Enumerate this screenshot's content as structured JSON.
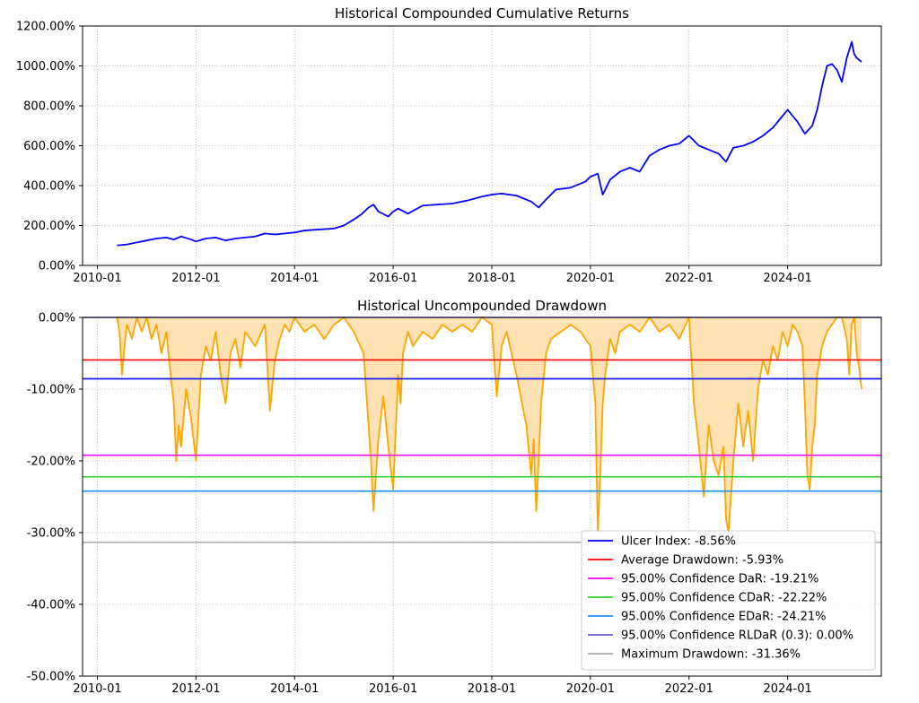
{
  "chart_data": [
    {
      "type": "line",
      "title": "Historical Compounded Cumulative Returns",
      "xlabel": "",
      "ylabel": "",
      "color": "#0000ff",
      "ylim": [
        0,
        1200
      ],
      "y_ticks": [
        0,
        200,
        400,
        600,
        800,
        1000,
        1200
      ],
      "y_tick_labels": [
        "0.00%",
        "200.00%",
        "400.00%",
        "600.00%",
        "800.00%",
        "1000.00%",
        "1200.00%"
      ],
      "x_ticks": [
        2010,
        2012,
        2014,
        2016,
        2018,
        2020,
        2022,
        2024
      ],
      "x_tick_labels": [
        "2010-01",
        "2012-01",
        "2014-01",
        "2016-01",
        "2018-01",
        "2020-01",
        "2022-01",
        "2024-01"
      ],
      "x_range": [
        2009.7,
        2025.9
      ],
      "grid": true,
      "series": [
        {
          "name": "Compounded Cumulative Returns",
          "x": [
            2010.4,
            2010.6,
            2010.8,
            2011.0,
            2011.2,
            2011.4,
            2011.55,
            2011.7,
            2011.9,
            2012.0,
            2012.2,
            2012.4,
            2012.6,
            2012.8,
            2013.0,
            2013.2,
            2013.4,
            2013.6,
            2013.8,
            2014.0,
            2014.2,
            2014.5,
            2014.8,
            2015.0,
            2015.2,
            2015.35,
            2015.5,
            2015.6,
            2015.7,
            2015.9,
            2016.0,
            2016.1,
            2016.3,
            2016.6,
            2016.9,
            2017.2,
            2017.5,
            2017.8,
            2018.0,
            2018.2,
            2018.5,
            2018.8,
            2018.95,
            2019.1,
            2019.3,
            2019.6,
            2019.9,
            2020.0,
            2020.15,
            2020.25,
            2020.4,
            2020.6,
            2020.8,
            2021.0,
            2021.2,
            2021.4,
            2021.6,
            2021.8,
            2022.0,
            2022.2,
            2022.4,
            2022.6,
            2022.75,
            2022.9,
            2023.1,
            2023.3,
            2023.5,
            2023.7,
            2023.9,
            2024.0,
            2024.2,
            2024.35,
            2024.5,
            2024.6,
            2024.7,
            2024.8,
            2024.9,
            2025.0,
            2025.1,
            2025.2,
            2025.3,
            2025.35,
            2025.4,
            2025.5
          ],
          "y": [
            100,
            105,
            115,
            125,
            135,
            140,
            130,
            145,
            130,
            120,
            135,
            140,
            125,
            135,
            140,
            145,
            160,
            155,
            160,
            165,
            175,
            180,
            185,
            200,
            230,
            255,
            290,
            305,
            270,
            245,
            270,
            285,
            260,
            300,
            305,
            310,
            325,
            345,
            355,
            360,
            350,
            320,
            290,
            330,
            380,
            390,
            420,
            445,
            460,
            355,
            430,
            470,
            490,
            470,
            550,
            580,
            600,
            610,
            650,
            600,
            580,
            560,
            520,
            590,
            600,
            620,
            650,
            690,
            750,
            780,
            720,
            660,
            700,
            780,
            900,
            1000,
            1010,
            980,
            920,
            1040,
            1120,
            1060,
            1040,
            1020
          ]
        }
      ]
    },
    {
      "type": "area",
      "title": "Historical Uncompounded Drawdown",
      "xlabel": "",
      "ylabel": "",
      "line_color": "#ffa500",
      "fill_color": "#ffe2b4",
      "ylim": [
        -50,
        0
      ],
      "y_ticks": [
        0,
        -10,
        -20,
        -30,
        -40,
        -50
      ],
      "y_tick_labels": [
        "0.00%",
        "-10.00%",
        "-20.00%",
        "-30.00%",
        "-40.00%",
        "-50.00%"
      ],
      "x_ticks": [
        2010,
        2012,
        2014,
        2016,
        2018,
        2020,
        2022,
        2024
      ],
      "x_tick_labels": [
        "2010-01",
        "2012-01",
        "2014-01",
        "2016-01",
        "2018-01",
        "2020-01",
        "2022-01",
        "2024-01"
      ],
      "x_range": [
        2009.7,
        2025.9
      ],
      "grid": true,
      "series": [
        {
          "name": "Drawdown",
          "x": [
            2010.4,
            2010.45,
            2010.5,
            2010.55,
            2010.6,
            2010.7,
            2010.8,
            2010.9,
            2011.0,
            2011.1,
            2011.2,
            2011.3,
            2011.4,
            2011.5,
            2011.55,
            2011.6,
            2011.65,
            2011.7,
            2011.8,
            2011.9,
            2012.0,
            2012.1,
            2012.2,
            2012.3,
            2012.4,
            2012.5,
            2012.6,
            2012.7,
            2012.8,
            2012.9,
            2013.0,
            2013.2,
            2013.4,
            2013.5,
            2013.6,
            2013.7,
            2013.8,
            2013.9,
            2014.0,
            2014.2,
            2014.4,
            2014.6,
            2014.8,
            2015.0,
            2015.2,
            2015.4,
            2015.55,
            2015.6,
            2015.65,
            2015.7,
            2015.8,
            2015.9,
            2016.0,
            2016.1,
            2016.15,
            2016.2,
            2016.3,
            2016.4,
            2016.6,
            2016.8,
            2017.0,
            2017.2,
            2017.4,
            2017.6,
            2017.8,
            2018.0,
            2018.1,
            2018.2,
            2018.3,
            2018.5,
            2018.7,
            2018.8,
            2018.85,
            2018.9,
            2018.95,
            2019.0,
            2019.1,
            2019.2,
            2019.4,
            2019.6,
            2019.8,
            2020.0,
            2020.1,
            2020.15,
            2020.2,
            2020.25,
            2020.3,
            2020.4,
            2020.5,
            2020.6,
            2020.8,
            2021.0,
            2021.2,
            2021.4,
            2021.6,
            2021.8,
            2022.0,
            2022.1,
            2022.2,
            2022.3,
            2022.4,
            2022.5,
            2022.6,
            2022.7,
            2022.75,
            2022.8,
            2022.9,
            2023.0,
            2023.1,
            2023.2,
            2023.3,
            2023.4,
            2023.5,
            2023.6,
            2023.7,
            2023.8,
            2023.9,
            2024.0,
            2024.1,
            2024.2,
            2024.3,
            2024.35,
            2024.4,
            2024.45,
            2024.5,
            2024.55,
            2024.6,
            2024.7,
            2024.8,
            2024.9,
            2025.0,
            2025.1,
            2025.2,
            2025.25,
            2025.3,
            2025.35,
            2025.4,
            2025.45,
            2025.5
          ],
          "y": [
            0,
            -2,
            -8,
            -4,
            -1,
            -3,
            0,
            -2,
            0,
            -3,
            -1,
            -5,
            -2,
            -9,
            -12,
            -20,
            -15,
            -18,
            -10,
            -14,
            -20,
            -8,
            -4,
            -6,
            -2,
            -8,
            -12,
            -5,
            -3,
            -7,
            -2,
            -4,
            -1,
            -13,
            -6,
            -3,
            -1,
            -2,
            0,
            -2,
            -1,
            -3,
            -1,
            0,
            -2,
            -5,
            -20,
            -27,
            -22,
            -17,
            -11,
            -18,
            -24,
            -8,
            -12,
            -5,
            -2,
            -4,
            -2,
            -3,
            -1,
            -2,
            -1,
            -2,
            0,
            -1,
            -11,
            -4,
            -2,
            -8,
            -15,
            -22,
            -17,
            -27,
            -20,
            -12,
            -5,
            -3,
            -2,
            -1,
            -2,
            -4,
            -12,
            -30,
            -22,
            -12,
            -8,
            -3,
            -5,
            -2,
            -1,
            -2,
            0,
            -2,
            -1,
            -3,
            0,
            -12,
            -18,
            -25,
            -15,
            -20,
            -22,
            -18,
            -28,
            -30,
            -20,
            -12,
            -18,
            -13,
            -20,
            -10,
            -6,
            -8,
            -4,
            -6,
            -2,
            -4,
            -1,
            -2,
            -4,
            -12,
            -22,
            -24,
            -18,
            -15,
            -8,
            -4,
            -2,
            -1,
            0,
            0,
            -3,
            -8,
            -1,
            0,
            -5,
            -7,
            -10
          ]
        }
      ],
      "risk_lines": [
        {
          "label": "Ulcer Index: -8.56%",
          "value": -8.56,
          "color": "#0000ff"
        },
        {
          "label": "Average Drawdown: -5.93%",
          "value": -5.93,
          "color": "#ff0000"
        },
        {
          "label": "95.00% Confidence DaR: -19.21%",
          "value": -19.21,
          "color": "#ff00ff"
        },
        {
          "label": "95.00% Confidence CDaR: -22.22%",
          "value": -22.22,
          "color": "#32cd32"
        },
        {
          "label": "95.00% Confidence EDaR: -24.21%",
          "value": -24.21,
          "color": "#1e90ff"
        },
        {
          "label": "95.00% Confidence RLDaR (0.3): 0.00%",
          "value": 0.0,
          "color": "#6a5acd"
        },
        {
          "label": "Maximum Drawdown: -31.36%",
          "value": -31.36,
          "color": "#a9a9a9"
        }
      ],
      "legend_position": "lower-right"
    }
  ]
}
